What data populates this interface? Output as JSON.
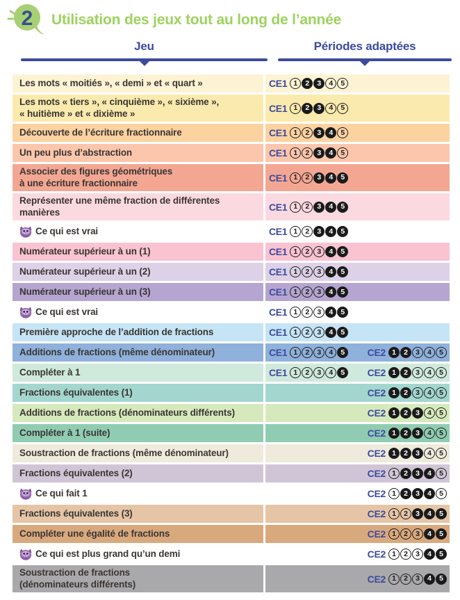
{
  "header": {
    "badge_number": "2",
    "title": "Utilisation des jeux tout au long de l’année"
  },
  "columns": {
    "left": "Jeu",
    "right": "Périodes adaptées"
  },
  "legend": {
    "ce1": "CE1",
    "ce2": "CE2"
  },
  "period_numbers": [
    "1",
    "2",
    "3",
    "4",
    "5"
  ],
  "icons": {
    "badge": "speech-bubble-2-icon",
    "owl": "owl-mascot-icon"
  },
  "colors": {
    "title_green": "#9ed25f",
    "badge_green": "#a7d073",
    "badge_number_blue": "#37508e",
    "header_blue": "#3c4b9e",
    "text_dark": "#3a3633",
    "circle_black": "#1b1b1b",
    "circle_text_light": "#ffffff",
    "owl_purple": "#9c6fb5"
  },
  "rows": [
    {
      "label": "Les mots « moitiés », « demi » et « quart »",
      "bg": "#fdf3d4",
      "owl": false,
      "tall": false,
      "ce1": [
        0,
        1,
        1,
        0,
        0
      ],
      "ce2": null
    },
    {
      "label": "Les mots « tiers », « cinquième », « sixième »,\n« huitième » et « dixième »",
      "bg": "#fbeaad",
      "owl": false,
      "tall": true,
      "ce1": [
        0,
        1,
        1,
        0,
        0
      ],
      "ce2": null
    },
    {
      "label": "Découverte de l’écriture fractionnaire",
      "bg": "#fbd2a0",
      "owl": false,
      "tall": false,
      "ce1": [
        0,
        0,
        1,
        1,
        0
      ],
      "ce2": null
    },
    {
      "label": "Un peu plus d’abstraction",
      "bg": "#fbc6ac",
      "owl": false,
      "tall": false,
      "ce1": [
        0,
        0,
        1,
        1,
        0
      ],
      "ce2": null
    },
    {
      "label": "Associer des figures géométriques\nà une écriture fractionnaire",
      "bg": "#f3a793",
      "owl": false,
      "tall": true,
      "ce1": [
        0,
        0,
        1,
        1,
        1
      ],
      "ce2": null
    },
    {
      "label": "Représenter une même fraction de différentes\nmanières",
      "bg": "#fbd9e0",
      "owl": false,
      "tall": true,
      "ce1": [
        0,
        0,
        1,
        1,
        1
      ],
      "ce2": null
    },
    {
      "label": "Ce qui est vrai",
      "bg": "#ffffff",
      "owl": true,
      "tall": false,
      "ce1": [
        0,
        0,
        1,
        1,
        1
      ],
      "ce2": null
    },
    {
      "label": "Numérateur supérieur à un (1)",
      "bg": "#f9c3d1",
      "owl": false,
      "tall": false,
      "ce1": [
        0,
        0,
        0,
        1,
        1
      ],
      "ce2": null
    },
    {
      "label": "Numérateur supérieur à un (2)",
      "bg": "#ddd1e7",
      "owl": false,
      "tall": false,
      "ce1": [
        0,
        0,
        0,
        1,
        1
      ],
      "ce2": null
    },
    {
      "label": "Numérateur supérieur à un (3)",
      "bg": "#b5a5d0",
      "owl": false,
      "tall": false,
      "ce1": [
        0,
        0,
        0,
        1,
        1
      ],
      "ce2": null
    },
    {
      "label": "Ce qui est vrai",
      "bg": "#ffffff",
      "owl": true,
      "tall": false,
      "ce1": [
        0,
        0,
        0,
        1,
        1
      ],
      "ce2": null
    },
    {
      "label": "Première approche de l’addition de fractions",
      "bg": "#c5e4f5",
      "owl": false,
      "tall": false,
      "ce1": [
        0,
        0,
        0,
        1,
        1
      ],
      "ce2": null
    },
    {
      "label": "Additions de fractions (même dénominateur)",
      "bg": "#8fb1db",
      "owl": false,
      "tall": false,
      "ce1": [
        0,
        0,
        0,
        0,
        1
      ],
      "ce2": [
        1,
        1,
        0,
        0,
        0
      ]
    },
    {
      "label": "Compléter à 1",
      "bg": "#cfe9dc",
      "owl": false,
      "tall": false,
      "ce1": [
        0,
        0,
        0,
        0,
        1
      ],
      "ce2": [
        1,
        1,
        0,
        0,
        0
      ]
    },
    {
      "label": "Fractions équivalentes (1)",
      "bg": "#a3d6ce",
      "owl": false,
      "tall": false,
      "ce1": null,
      "ce2": [
        1,
        1,
        0,
        0,
        0
      ]
    },
    {
      "label": "Additions de fractions (dénominateurs différents)",
      "bg": "#d6e9bc",
      "owl": false,
      "tall": false,
      "ce1": null,
      "ce2": [
        1,
        1,
        1,
        0,
        0
      ]
    },
    {
      "label": "Compléter à 1 (suite)",
      "bg": "#90ccb2",
      "owl": false,
      "tall": false,
      "ce1": null,
      "ce2": [
        1,
        1,
        1,
        0,
        0
      ]
    },
    {
      "label": "Soustraction de fractions (même dénominateur)",
      "bg": "#efebdc",
      "owl": false,
      "tall": false,
      "ce1": null,
      "ce2": [
        1,
        1,
        1,
        0,
        0
      ]
    },
    {
      "label": "Fractions équivalentes (2)",
      "bg": "#d0c5d6",
      "owl": false,
      "tall": false,
      "ce1": null,
      "ce2": [
        0,
        1,
        1,
        1,
        0
      ]
    },
    {
      "label": "Ce qui fait 1",
      "bg": "#ffffff",
      "owl": true,
      "tall": false,
      "ce1": null,
      "ce2": [
        0,
        1,
        1,
        1,
        0
      ]
    },
    {
      "label": "Fractions équivalentes (3)",
      "bg": "#e5c5a6",
      "owl": false,
      "tall": false,
      "ce1": null,
      "ce2": [
        0,
        0,
        1,
        1,
        1
      ]
    },
    {
      "label": "Compléter une égalité de fractions",
      "bg": "#d9a97e",
      "owl": false,
      "tall": false,
      "ce1": null,
      "ce2": [
        0,
        0,
        0,
        1,
        1
      ]
    },
    {
      "label": "Ce qui est plus grand qu’un demi",
      "bg": "#ffffff",
      "owl": true,
      "tall": false,
      "ce1": null,
      "ce2": [
        0,
        0,
        0,
        1,
        1
      ]
    },
    {
      "label": "Soustraction de fractions\n(dénominateurs différents)",
      "bg": "#a9a8aa",
      "owl": false,
      "tall": true,
      "ce1": null,
      "ce2": [
        0,
        0,
        0,
        1,
        1
      ]
    }
  ]
}
